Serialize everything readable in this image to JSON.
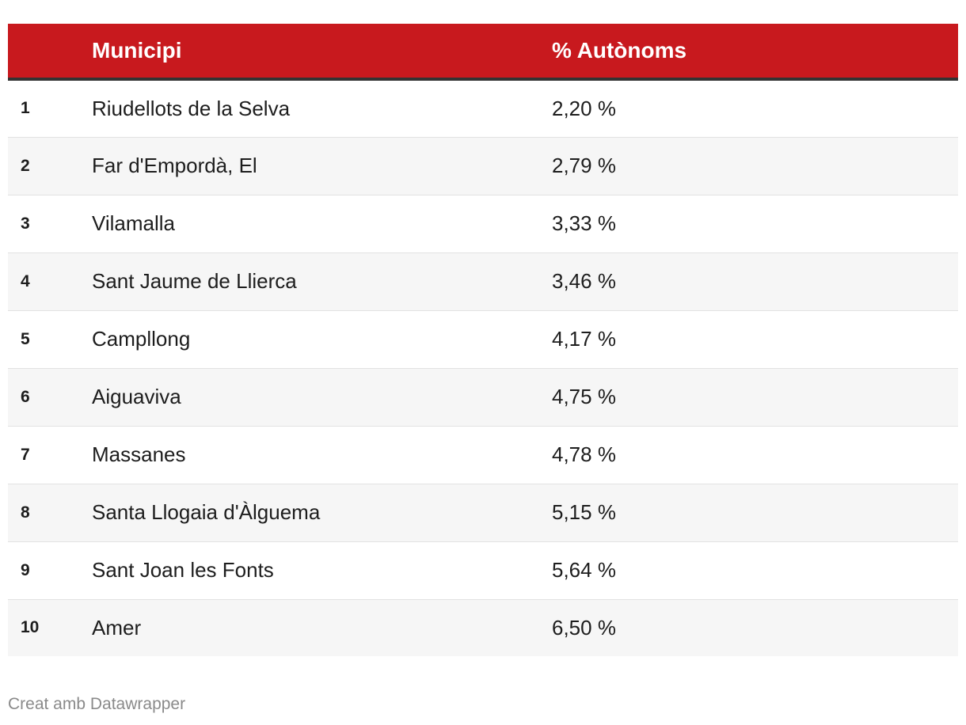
{
  "chart_data": {
    "type": "table",
    "columns": [
      "",
      "Municipi",
      "% Autònoms"
    ],
    "rows": [
      {
        "rank": "1",
        "municipi": "Riudellots de la Selva",
        "pct": "2,20 %",
        "value": 2.2
      },
      {
        "rank": "2",
        "municipi": "Far d'Empordà, El",
        "pct": "2,79 %",
        "value": 2.79
      },
      {
        "rank": "3",
        "municipi": "Vilamalla",
        "pct": "3,33 %",
        "value": 3.33
      },
      {
        "rank": "4",
        "municipi": "Sant Jaume de Llierca",
        "pct": "3,46 %",
        "value": 3.46
      },
      {
        "rank": "5",
        "municipi": "Campllong",
        "pct": "4,17 %",
        "value": 4.17
      },
      {
        "rank": "6",
        "municipi": "Aiguaviva",
        "pct": "4,75 %",
        "value": 4.75
      },
      {
        "rank": "7",
        "municipi": "Massanes",
        "pct": "4,78 %",
        "value": 4.78
      },
      {
        "rank": "8",
        "municipi": "Santa Llogaia d'Àlguema",
        "pct": "5,15 %",
        "value": 5.15
      },
      {
        "rank": "9",
        "municipi": "Sant Joan les Fonts",
        "pct": "5,64 %",
        "value": 5.64
      },
      {
        "rank": "10",
        "municipi": "Amer",
        "pct": "6,50 %",
        "value": 6.5
      }
    ],
    "header_color": "#c8191e",
    "stripe_color": "#f6f6f6"
  },
  "footer": {
    "credit": "Creat amb Datawrapper"
  }
}
